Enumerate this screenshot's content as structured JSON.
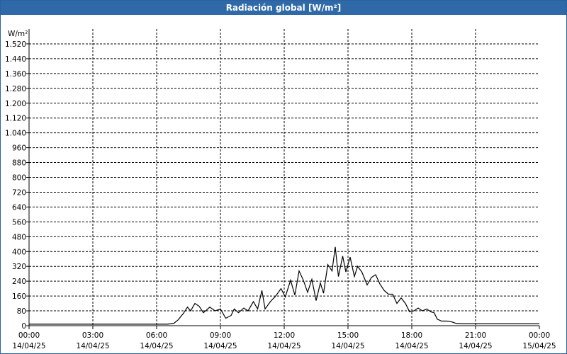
{
  "window": {
    "title": "Radiación global [W/m²]"
  },
  "chart_data": {
    "type": "line",
    "title": "Radiación global [W/m²]",
    "ylabel": "W/m²",
    "xlabel": "",
    "ylim": [
      0,
      1600
    ],
    "xlim_hours": [
      0,
      24
    ],
    "y_ticks": [
      0,
      80,
      160,
      240,
      320,
      400,
      480,
      560,
      640,
      720,
      800,
      880,
      960,
      1040,
      1120,
      1200,
      1280,
      1360,
      1440,
      1520
    ],
    "y_tick_labels": [
      "0",
      "80",
      "160",
      "240",
      "320",
      "400",
      "480",
      "560",
      "640",
      "720",
      "800",
      "880",
      "960",
      "1.040",
      "1.120",
      "1.200",
      "1.280",
      "1.360",
      "1.440",
      "1.520"
    ],
    "x_ticks": [
      {
        "h": 0,
        "time": "00:00",
        "date": "14/04/25"
      },
      {
        "h": 3,
        "time": "03:00",
        "date": "14/04/25"
      },
      {
        "h": 6,
        "time": "06:00",
        "date": "14/04/25"
      },
      {
        "h": 9,
        "time": "09:00",
        "date": "14/04/25"
      },
      {
        "h": 12,
        "time": "12:00",
        "date": "14/04/25"
      },
      {
        "h": 15,
        "time": "15:00",
        "date": "14/04/25"
      },
      {
        "h": 18,
        "time": "18:00",
        "date": "14/04/25"
      },
      {
        "h": 21,
        "time": "21:00",
        "date": "14/04/25"
      },
      {
        "h": 24,
        "time": "00:00",
        "date": "15/04/25"
      }
    ],
    "grid": true,
    "series": [
      {
        "name": "",
        "color": "#000000",
        "points": [
          [
            0,
            8
          ],
          [
            6.5,
            8
          ],
          [
            6.8,
            12
          ],
          [
            7.0,
            30
          ],
          [
            7.25,
            65
          ],
          [
            7.45,
            100
          ],
          [
            7.6,
            80
          ],
          [
            7.8,
            120
          ],
          [
            8.0,
            105
          ],
          [
            8.2,
            70
          ],
          [
            8.5,
            100
          ],
          [
            8.75,
            80
          ],
          [
            9.0,
            90
          ],
          [
            9.25,
            40
          ],
          [
            9.5,
            55
          ],
          [
            9.65,
            90
          ],
          [
            9.85,
            70
          ],
          [
            10.1,
            95
          ],
          [
            10.3,
            80
          ],
          [
            10.55,
            130
          ],
          [
            10.75,
            90
          ],
          [
            10.95,
            190
          ],
          [
            11.1,
            90
          ],
          [
            11.35,
            130
          ],
          [
            11.6,
            160
          ],
          [
            11.85,
            200
          ],
          [
            12.05,
            155
          ],
          [
            12.3,
            245
          ],
          [
            12.5,
            165
          ],
          [
            12.7,
            295
          ],
          [
            12.9,
            245
          ],
          [
            13.1,
            180
          ],
          [
            13.3,
            250
          ],
          [
            13.5,
            135
          ],
          [
            13.7,
            230
          ],
          [
            13.85,
            175
          ],
          [
            14.05,
            330
          ],
          [
            14.25,
            295
          ],
          [
            14.4,
            425
          ],
          [
            14.55,
            265
          ],
          [
            14.75,
            375
          ],
          [
            14.9,
            290
          ],
          [
            15.1,
            370
          ],
          [
            15.3,
            265
          ],
          [
            15.45,
            320
          ],
          [
            15.65,
            290
          ],
          [
            15.9,
            220
          ],
          [
            16.1,
            260
          ],
          [
            16.3,
            275
          ],
          [
            16.5,
            225
          ],
          [
            16.7,
            190
          ],
          [
            16.9,
            170
          ],
          [
            17.1,
            170
          ],
          [
            17.3,
            120
          ],
          [
            17.5,
            150
          ],
          [
            17.7,
            120
          ],
          [
            17.9,
            75
          ],
          [
            18.1,
            80
          ],
          [
            18.3,
            95
          ],
          [
            18.5,
            80
          ],
          [
            18.7,
            90
          ],
          [
            18.9,
            75
          ],
          [
            19.05,
            70
          ],
          [
            19.2,
            35
          ],
          [
            19.4,
            25
          ],
          [
            19.65,
            25
          ],
          [
            19.9,
            20
          ],
          [
            20.1,
            12
          ],
          [
            20.5,
            10
          ],
          [
            24,
            10
          ]
        ]
      }
    ]
  }
}
